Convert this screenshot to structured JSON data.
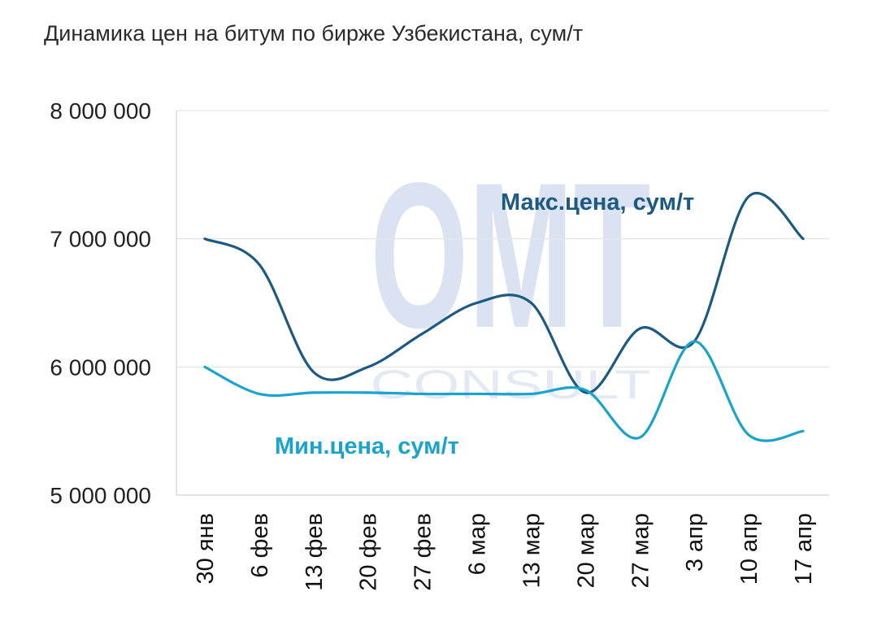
{
  "chart_data": {
    "type": "line",
    "title": "Динамика цен на битум по бирже Узбекистана, сум/т",
    "categories": [
      "30 янв",
      "6 фев",
      "13 фев",
      "20 фев",
      "27 фев",
      "6 мар",
      "13 мар",
      "20 мар",
      "27 мар",
      "3 апр",
      "10 апр",
      "17 апр"
    ],
    "series": [
      {
        "name": "Макс.цена,  сум/т",
        "color": "#1d5a82",
        "values": [
          7000000,
          6800000,
          5960000,
          6000000,
          6260000,
          6500000,
          6500000,
          5800000,
          6300000,
          6200000,
          7330000,
          7000000
        ]
      },
      {
        "name": "Мин.цена,  сум/т",
        "color": "#1aa3cc",
        "values": [
          6000000,
          5790000,
          5800000,
          5800000,
          5790000,
          5790000,
          5790000,
          5820000,
          5450000,
          6200000,
          5470000,
          5500000
        ]
      }
    ],
    "yticks": [
      5000000,
      6000000,
      7000000,
      8000000
    ],
    "ytick_labels": [
      "5 000 000",
      "6 000 000",
      "7 000 000",
      "8 000 000"
    ],
    "ylim": [
      5000000,
      8000000
    ],
    "grid": true,
    "legend": "inline-labels",
    "watermark": {
      "main": "OMT",
      "sub": "CONSULT"
    }
  }
}
